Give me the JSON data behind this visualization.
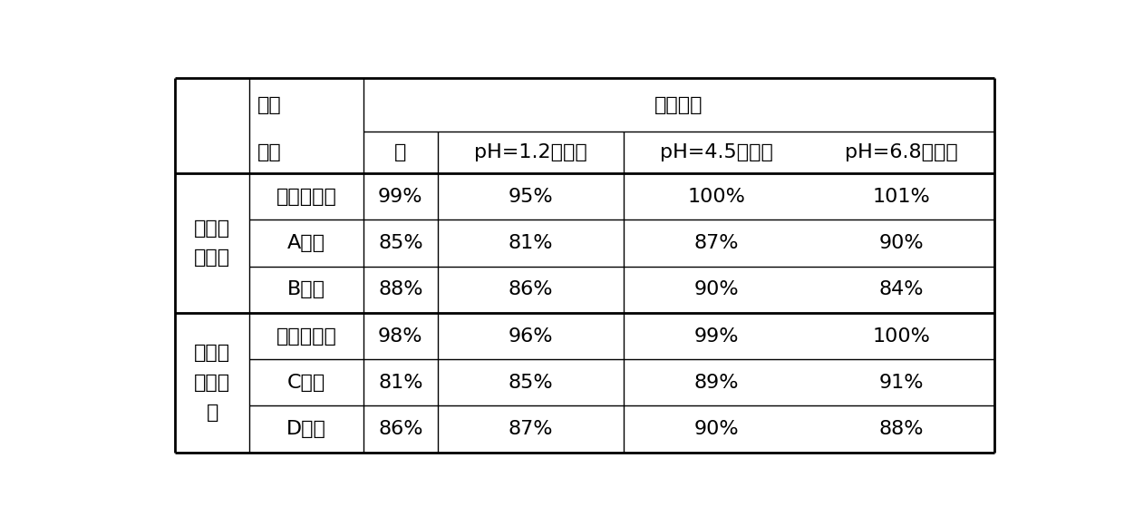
{
  "figsize": [
    12.4,
    5.7
  ],
  "dpi": 100,
  "background_color": "#ffffff",
  "col2": [
    "本发明样品",
    "A厂家",
    "B厂家",
    "本发明样品",
    "C厂家",
    "D厂家"
  ],
  "data": [
    [
      "99%",
      "95%",
      "100%",
      "101%"
    ],
    [
      "85%",
      "81%",
      "87%",
      "90%"
    ],
    [
      "88%",
      "86%",
      "90%",
      "84%"
    ],
    [
      "98%",
      "96%",
      "99%",
      "100%"
    ],
    [
      "81%",
      "85%",
      "89%",
      "91%"
    ],
    [
      "86%",
      "87%",
      "90%",
      "88%"
    ]
  ],
  "header_sub": [
    "水",
    "pH=1.2缓冲液",
    "pH=4.5缓冲液",
    "pH=6.8缓冲液"
  ],
  "label_pinpai": "样品",
  "label_laiyuan": "来源",
  "label_rouchu": "溶出介质",
  "group1_col1": "米格列\n奈钒片",
  "group2_col1": "米格列\n奈钒胶\n囊",
  "font_size": 16,
  "line_color": "#000000"
}
